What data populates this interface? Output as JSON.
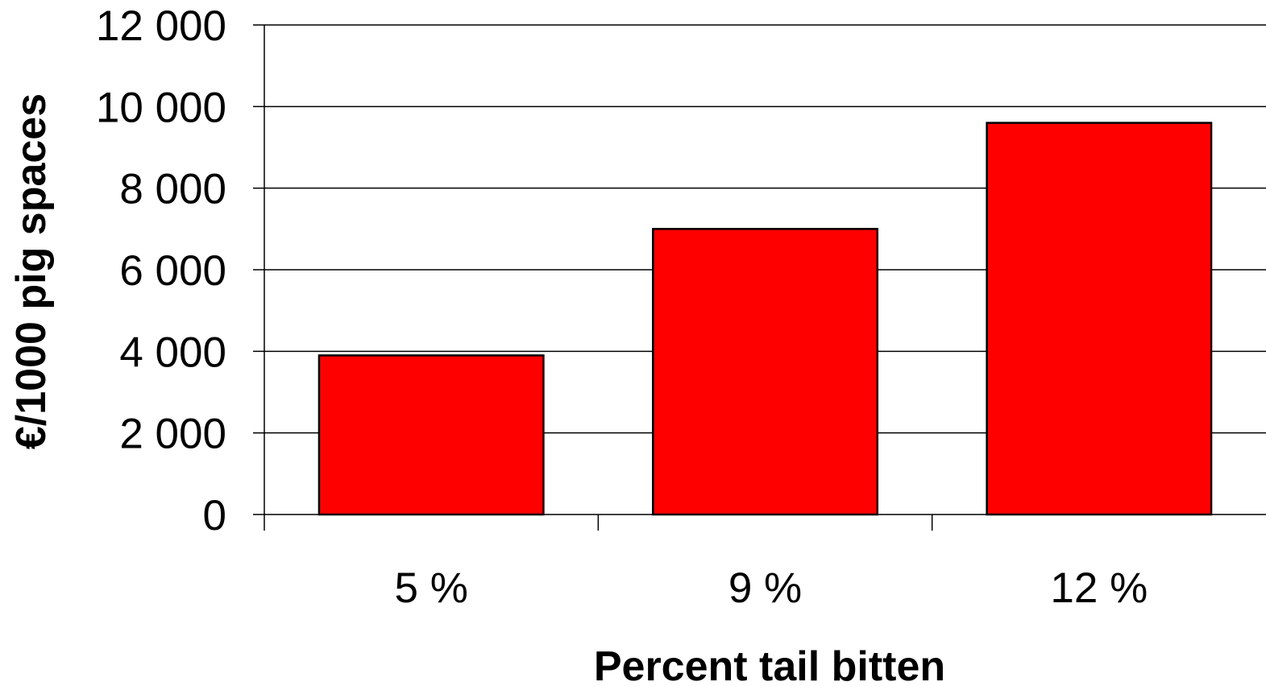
{
  "chart_data": {
    "type": "bar",
    "title": "",
    "xlabel": "Percent tail bitten",
    "ylabel": "€/1000 pig spaces",
    "categories": [
      "5 %",
      "9 %",
      "12 %"
    ],
    "values": [
      3900,
      7000,
      9600
    ],
    "ylim": [
      0,
      12000
    ],
    "yticks": [
      0,
      2000,
      4000,
      6000,
      8000,
      10000,
      12000
    ],
    "ytick_labels": [
      "0",
      "2 000",
      "4 000",
      "6 000",
      "8 000",
      "10 000",
      "12 000"
    ],
    "grid": true,
    "legend": "none",
    "colors": {
      "bar_fill": "#ff0000",
      "bar_stroke": "#000000",
      "grid": "#000000",
      "axis": "#000000"
    }
  }
}
